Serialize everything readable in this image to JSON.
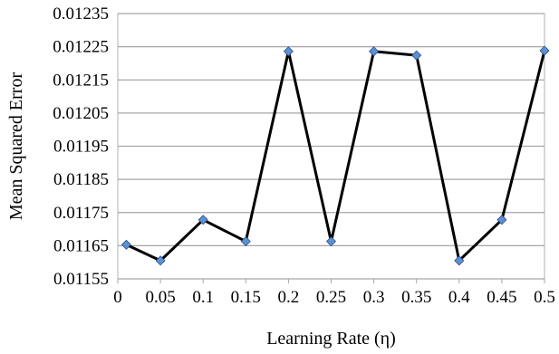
{
  "chart_data": {
    "type": "line",
    "title": "",
    "xlabel": "Learning Rate (η)",
    "ylabel": "Mean Squared Error",
    "x": [
      0.01,
      0.05,
      0.1,
      0.15,
      0.2,
      0.25,
      0.3,
      0.35,
      0.4,
      0.45,
      0.5
    ],
    "series": [
      {
        "values": [
          0.011653,
          0.011605,
          0.011728,
          0.011663,
          0.012236,
          0.011663,
          0.012236,
          0.012224,
          0.011605,
          0.011728,
          0.012238
        ],
        "color": "#000000",
        "marker": "diamond",
        "marker_color": "#5b8fd6"
      }
    ],
    "xlim": [
      0,
      0.5
    ],
    "ylim": [
      0.01155,
      0.01235
    ],
    "x_ticks": [
      "0",
      "0.05",
      "0.1",
      "0.15",
      "0.2",
      "0.25",
      "0.3",
      "0.35",
      "0.4",
      "0.45",
      "0.5"
    ],
    "x_tick_values": [
      0,
      0.05,
      0.1,
      0.15,
      0.2,
      0.25,
      0.3,
      0.35,
      0.4,
      0.45,
      0.5
    ],
    "y_ticks": [
      "0.01155",
      "0.01165",
      "0.01175",
      "0.01185",
      "0.01195",
      "0.01205",
      "0.01215",
      "0.01225",
      "0.01235"
    ],
    "y_tick_values": [
      0.01155,
      0.01165,
      0.01175,
      0.01185,
      0.01195,
      0.01205,
      0.01215,
      0.01225,
      0.01235
    ],
    "grid": true,
    "legend": "none"
  }
}
